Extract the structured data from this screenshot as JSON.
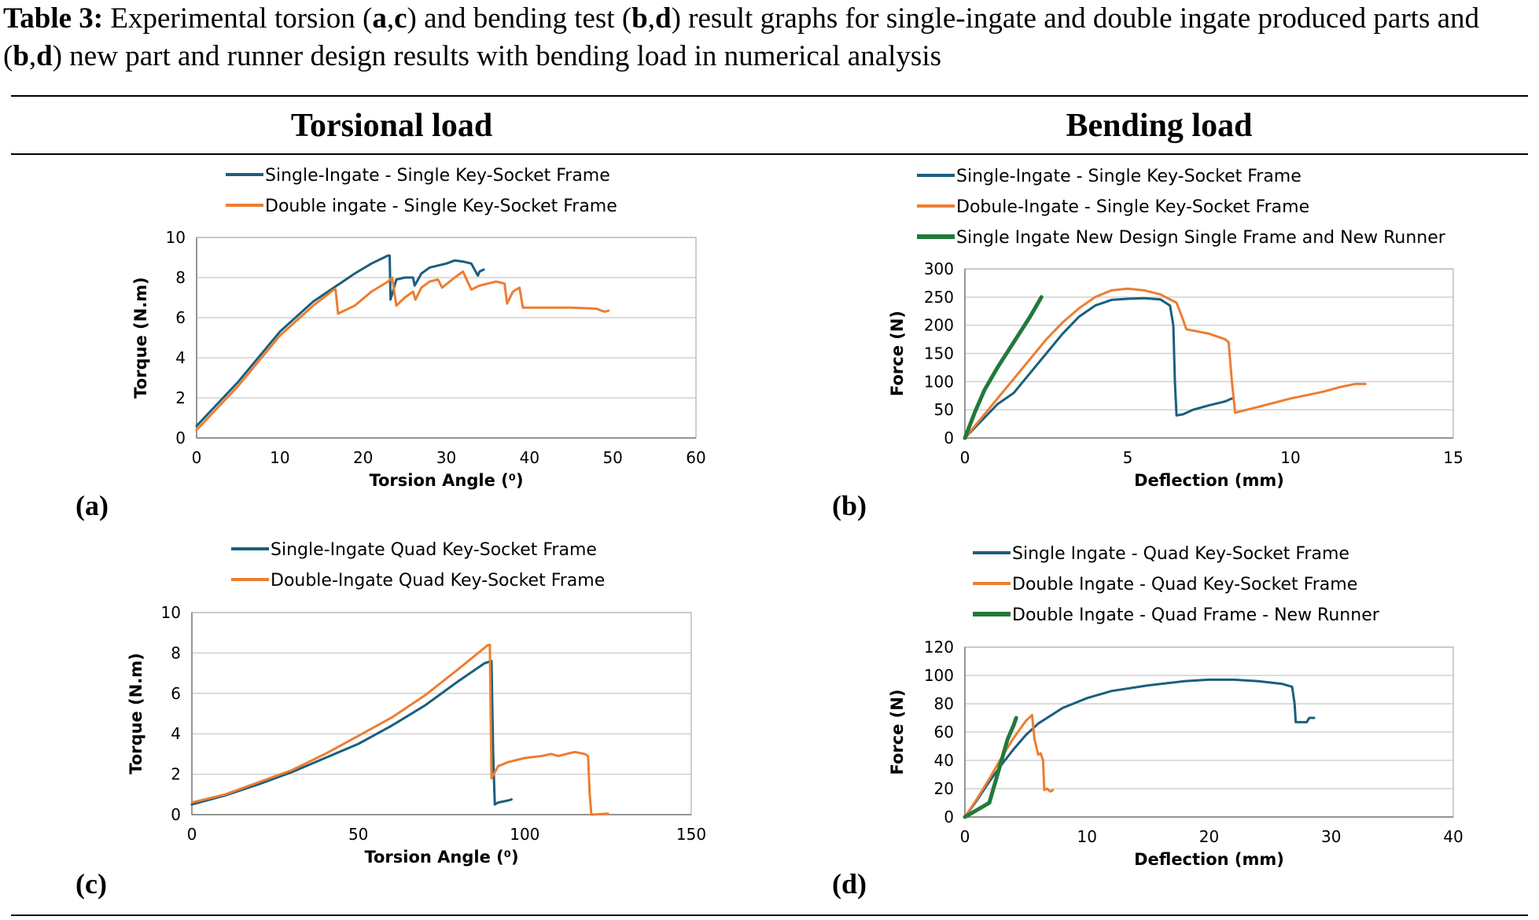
{
  "caption": {
    "label": "Table 3:",
    "t1": " Experimental torsion (",
    "a": "a",
    "comma1": ",",
    "c": "c",
    "t2": ") and bending test (",
    "b1": "b",
    "comma2": ",",
    "d1": "d",
    "t3": ") result graphs for single-ingate and double ingate produced parts and (",
    "b2": "b",
    "comma3": ",",
    "d2": "d",
    "t4": ") new part and runner design results with bending load in numerical analysis"
  },
  "columns": {
    "left": "Torsional load",
    "right": "Bending load"
  },
  "colors": {
    "blue": "#1a5f7e",
    "orange": "#ed7d31",
    "green": "#217a3a",
    "grid": "#d0d0d0"
  },
  "panel_labels": [
    "(a)",
    "(b)",
    "(c)",
    "(d)"
  ],
  "chart_data": [
    {
      "id": "a",
      "type": "line",
      "xlabel": "Torsion Angle (⁰)",
      "ylabel": "Torque (N.m)",
      "xlim": [
        0,
        60
      ],
      "ylim": [
        0,
        10
      ],
      "xticks": [
        0,
        10,
        20,
        30,
        40,
        50,
        60
      ],
      "yticks": [
        0,
        2,
        4,
        6,
        8,
        10
      ],
      "grid": "horizontal",
      "legend": "top",
      "series": [
        {
          "name": "Single-Ingate - Single Key-Socket Frame",
          "color": "#1a5f7e",
          "x": [
            0,
            5,
            10,
            14,
            16.5,
            19,
            21,
            23,
            23.2,
            23.3,
            24,
            25,
            26,
            26.2,
            27,
            28,
            29,
            30,
            31,
            32,
            33,
            33.8,
            34,
            34.5
          ],
          "y": [
            0.6,
            2.8,
            5.3,
            6.8,
            7.5,
            8.2,
            8.7,
            9.1,
            9.1,
            6.9,
            7.9,
            8.0,
            8.0,
            7.6,
            8.2,
            8.5,
            8.6,
            8.7,
            8.85,
            8.8,
            8.7,
            8.1,
            8.3,
            8.4
          ]
        },
        {
          "name": "Double ingate - Single Key-Socket Frame",
          "color": "#ed7d31",
          "x": [
            0,
            5,
            10,
            14,
            16.5,
            16.7,
            17,
            19,
            21,
            23,
            23.5,
            24,
            25,
            26,
            26.3,
            27,
            28,
            29,
            29.5,
            31,
            32,
            33,
            34,
            36,
            37,
            37.3,
            38,
            38.8,
            39.2,
            41,
            45,
            48,
            49,
            49.5
          ],
          "y": [
            0.4,
            2.6,
            5.1,
            6.6,
            7.4,
            7.4,
            6.2,
            6.6,
            7.3,
            7.8,
            8.0,
            6.6,
            7.0,
            7.3,
            6.9,
            7.5,
            7.8,
            7.9,
            7.5,
            8.0,
            8.3,
            7.4,
            7.6,
            7.8,
            7.7,
            6.7,
            7.3,
            7.5,
            6.5,
            6.5,
            6.5,
            6.45,
            6.3,
            6.35
          ]
        }
      ]
    },
    {
      "id": "b",
      "type": "line",
      "xlabel": "Deflection (mm)",
      "ylabel": "Force (N)",
      "xlim": [
        0,
        15
      ],
      "ylim": [
        0,
        300
      ],
      "xticks": [
        0,
        5,
        10,
        15
      ],
      "yticks": [
        0,
        50,
        100,
        150,
        200,
        250,
        300
      ],
      "grid": "horizontal",
      "legend": "top",
      "series": [
        {
          "name": "Single-Ingate - Single Key-Socket Frame",
          "color": "#1a5f7e",
          "x": [
            0,
            0.5,
            1,
            1.5,
            2,
            2.5,
            3,
            3.5,
            4,
            4.5,
            5,
            5.5,
            6,
            6.3,
            6.4,
            6.45,
            6.5,
            6.7,
            7,
            7.5,
            8,
            8.2
          ],
          "y": [
            0,
            30,
            60,
            80,
            115,
            150,
            185,
            215,
            235,
            245,
            247,
            248,
            246,
            235,
            200,
            100,
            40,
            42,
            50,
            58,
            65,
            70
          ]
        },
        {
          "name": "Dobule-Ingate - Single Key-Socket Frame",
          "color": "#ed7d31",
          "x": [
            0,
            0.5,
            1,
            1.5,
            2,
            2.5,
            3,
            3.5,
            4,
            4.5,
            5,
            5.5,
            6,
            6.5,
            6.7,
            6.8,
            7.5,
            8,
            8.1,
            8.2,
            8.3,
            9,
            10,
            11,
            11.5,
            12,
            12.3
          ],
          "y": [
            0,
            35,
            70,
            105,
            140,
            175,
            205,
            230,
            250,
            262,
            265,
            262,
            255,
            240,
            210,
            193,
            185,
            175,
            170,
            100,
            45,
            55,
            70,
            82,
            90,
            96,
            96
          ]
        },
        {
          "name": "Single Ingate New Design Single Frame and New Runner",
          "color": "#217a3a",
          "thick": true,
          "x": [
            0,
            0.3,
            0.6,
            1,
            1.5,
            2,
            2.35
          ],
          "y": [
            0,
            45,
            85,
            125,
            170,
            215,
            250
          ]
        }
      ]
    },
    {
      "id": "c",
      "type": "line",
      "xlabel": "Torsion Angle (⁰)",
      "ylabel": "Torque (N.m)",
      "xlim": [
        0,
        150
      ],
      "ylim": [
        0,
        10
      ],
      "xticks": [
        0,
        50,
        100,
        150
      ],
      "yticks": [
        0,
        2,
        4,
        6,
        8,
        10
      ],
      "grid": "horizontal",
      "legend": "top",
      "series": [
        {
          "name": "Single-Ingate Quad Key-Socket Frame",
          "color": "#1a5f7e",
          "x": [
            0,
            10,
            20,
            30,
            40,
            50,
            60,
            70,
            80,
            88,
            90,
            90.5,
            91,
            92,
            95,
            96
          ],
          "y": [
            0.5,
            0.95,
            1.5,
            2.1,
            2.8,
            3.5,
            4.4,
            5.4,
            6.6,
            7.5,
            7.6,
            3.0,
            0.5,
            0.6,
            0.7,
            0.75
          ]
        },
        {
          "name": "Double-Ingate Quad Key-Socket Frame",
          "color": "#ed7d31",
          "x": [
            0,
            10,
            20,
            30,
            40,
            50,
            60,
            70,
            80,
            89,
            89.5,
            90,
            92,
            95,
            100,
            105,
            108,
            110,
            115,
            118,
            119,
            119.5,
            120,
            125
          ],
          "y": [
            0.6,
            1.0,
            1.6,
            2.2,
            3.0,
            3.9,
            4.8,
            5.9,
            7.2,
            8.4,
            8.4,
            1.8,
            2.4,
            2.6,
            2.8,
            2.9,
            3.0,
            2.9,
            3.1,
            3.0,
            2.9,
            1.0,
            0.0,
            0.05
          ]
        }
      ]
    },
    {
      "id": "d",
      "type": "line",
      "xlabel": "Deflection (mm)",
      "ylabel": "Force (N)",
      "xlim": [
        0,
        40
      ],
      "ylim": [
        0,
        120
      ],
      "xticks": [
        0,
        10,
        20,
        30,
        40
      ],
      "yticks": [
        0,
        20,
        40,
        60,
        80,
        100,
        120
      ],
      "grid": "horizontal",
      "legend": "top",
      "series": [
        {
          "name": "Single Ingate - Quad Key-Socket Frame",
          "color": "#1a5f7e",
          "x": [
            0,
            1,
            2,
            3,
            4,
            5,
            6,
            8,
            10,
            12,
            15,
            18,
            20,
            22,
            24,
            26,
            26.8,
            27,
            27.1,
            28,
            28.2,
            28.6
          ],
          "y": [
            0,
            12,
            25,
            37,
            48,
            58,
            66,
            77,
            84,
            89,
            93,
            96,
            97,
            97,
            96,
            94,
            92,
            80,
            67,
            67,
            70,
            70
          ]
        },
        {
          "name": "Double Ingate - Quad Key-Socket Frame",
          "color": "#ed7d31",
          "x": [
            0,
            1,
            2,
            3,
            4,
            5,
            5.5,
            5.7,
            6,
            6.2,
            6.4,
            6.5,
            6.7,
            7,
            7.2
          ],
          "y": [
            0,
            13,
            27,
            42,
            56,
            68,
            72,
            55,
            44,
            45,
            40,
            19,
            20,
            18,
            19
          ]
        },
        {
          "name": "Double Ingate - Quad  Frame - New Runner",
          "color": "#217a3a",
          "thick": true,
          "x": [
            0,
            1,
            2,
            2.5,
            3,
            3.5,
            4,
            4.2
          ],
          "y": [
            0,
            5,
            10,
            25,
            40,
            55,
            65,
            70
          ]
        }
      ]
    }
  ]
}
